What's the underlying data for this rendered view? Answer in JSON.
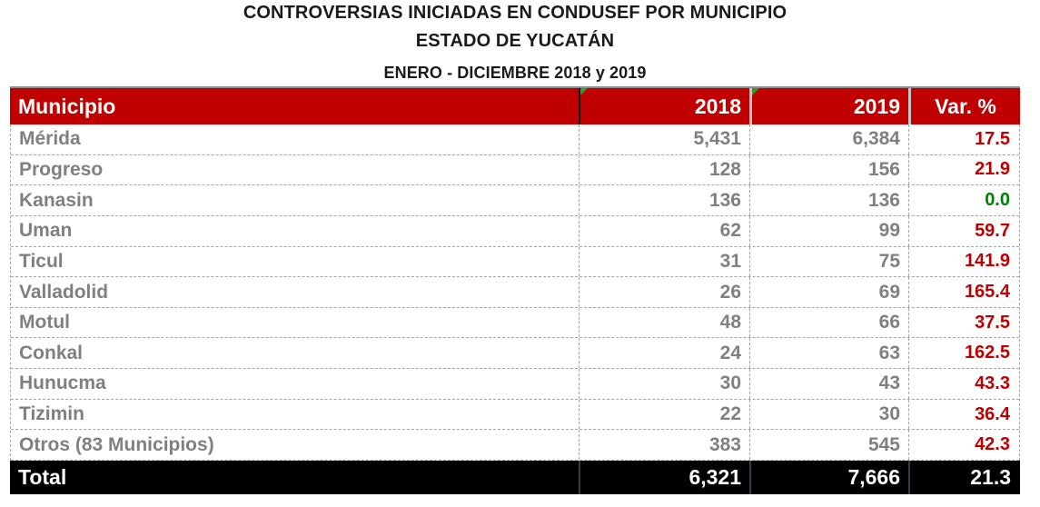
{
  "title": {
    "line1": "CONTROVERSIAS INICIADAS EN CONDUSEF POR MUNICIPIO",
    "line2": "ESTADO DE YUCATÁN",
    "line3": "ENERO - DICIEMBRE 2018 y 2019"
  },
  "table": {
    "columns": [
      "Municipio",
      "2018",
      "2019",
      "Var. %"
    ],
    "rows": [
      {
        "name": "Mérida",
        "v2018": "5,431",
        "v2019": "6,384",
        "variation": "17.5",
        "variation_style": "red"
      },
      {
        "name": "Progreso",
        "v2018": "128",
        "v2019": "156",
        "variation": "21.9",
        "variation_style": "red"
      },
      {
        "name": "Kanasin",
        "v2018": "136",
        "v2019": "136",
        "variation": "0.0",
        "variation_style": "green"
      },
      {
        "name": "Uman",
        "v2018": "62",
        "v2019": "99",
        "variation": "59.7",
        "variation_style": "red"
      },
      {
        "name": "Ticul",
        "v2018": "31",
        "v2019": "75",
        "variation": "141.9",
        "variation_style": "red"
      },
      {
        "name": "Valladolid",
        "v2018": "26",
        "v2019": "69",
        "variation": "165.4",
        "variation_style": "red"
      },
      {
        "name": "Motul",
        "v2018": "48",
        "v2019": "66",
        "variation": "37.5",
        "variation_style": "red"
      },
      {
        "name": "Conkal",
        "v2018": "24",
        "v2019": "63",
        "variation": "162.5",
        "variation_style": "red"
      },
      {
        "name": "Hunucma",
        "v2018": "30",
        "v2019": "43",
        "variation": "43.3",
        "variation_style": "red"
      },
      {
        "name": "Tizimin",
        "v2018": "22",
        "v2019": "30",
        "variation": "36.4",
        "variation_style": "red"
      },
      {
        "name": "Otros (83 Municipios)",
        "v2018": "383",
        "v2019": "545",
        "variation": "42.3",
        "variation_style": "red"
      }
    ],
    "total": {
      "label": "Total",
      "v2018": "6,321",
      "v2019": "7,666",
      "variation": "21.3"
    }
  },
  "colors": {
    "title_color": "#1a1a1a",
    "header_bg": "#C00000",
    "header_text": "#ffffff",
    "row_text": "#808080",
    "variation_red": "#C00000",
    "variation_green": "#008000",
    "total_bg": "#000000",
    "total_text": "#ffffff",
    "border_color": "#a6a6a6",
    "triangle_green": "#2e9e2e",
    "divider_black": "#000000"
  },
  "chart_data": {
    "type": "table",
    "title": "CONTROVERSIAS INICIADAS EN CONDUSEF POR MUNICIPIO",
    "subtitle": "ESTADO DE YUCATÁN",
    "period": "ENERO - DICIEMBRE 2018 y 2019",
    "columns": [
      "Municipio",
      "2018",
      "2019",
      "Var. %"
    ],
    "rows": [
      [
        "Mérida",
        5431,
        6384,
        17.5
      ],
      [
        "Progreso",
        128,
        156,
        21.9
      ],
      [
        "Kanasin",
        136,
        136,
        0.0
      ],
      [
        "Uman",
        62,
        99,
        59.7
      ],
      [
        "Ticul",
        31,
        75,
        141.9
      ],
      [
        "Valladolid",
        26,
        69,
        165.4
      ],
      [
        "Motul",
        48,
        66,
        37.5
      ],
      [
        "Conkal",
        24,
        63,
        162.5
      ],
      [
        "Hunucma",
        30,
        43,
        43.3
      ],
      [
        "Tizimin",
        22,
        30,
        36.4
      ],
      [
        "Otros (83 Municipios)",
        383,
        545,
        42.3
      ]
    ],
    "total": [
      "Total",
      6321,
      7666,
      21.3
    ]
  }
}
